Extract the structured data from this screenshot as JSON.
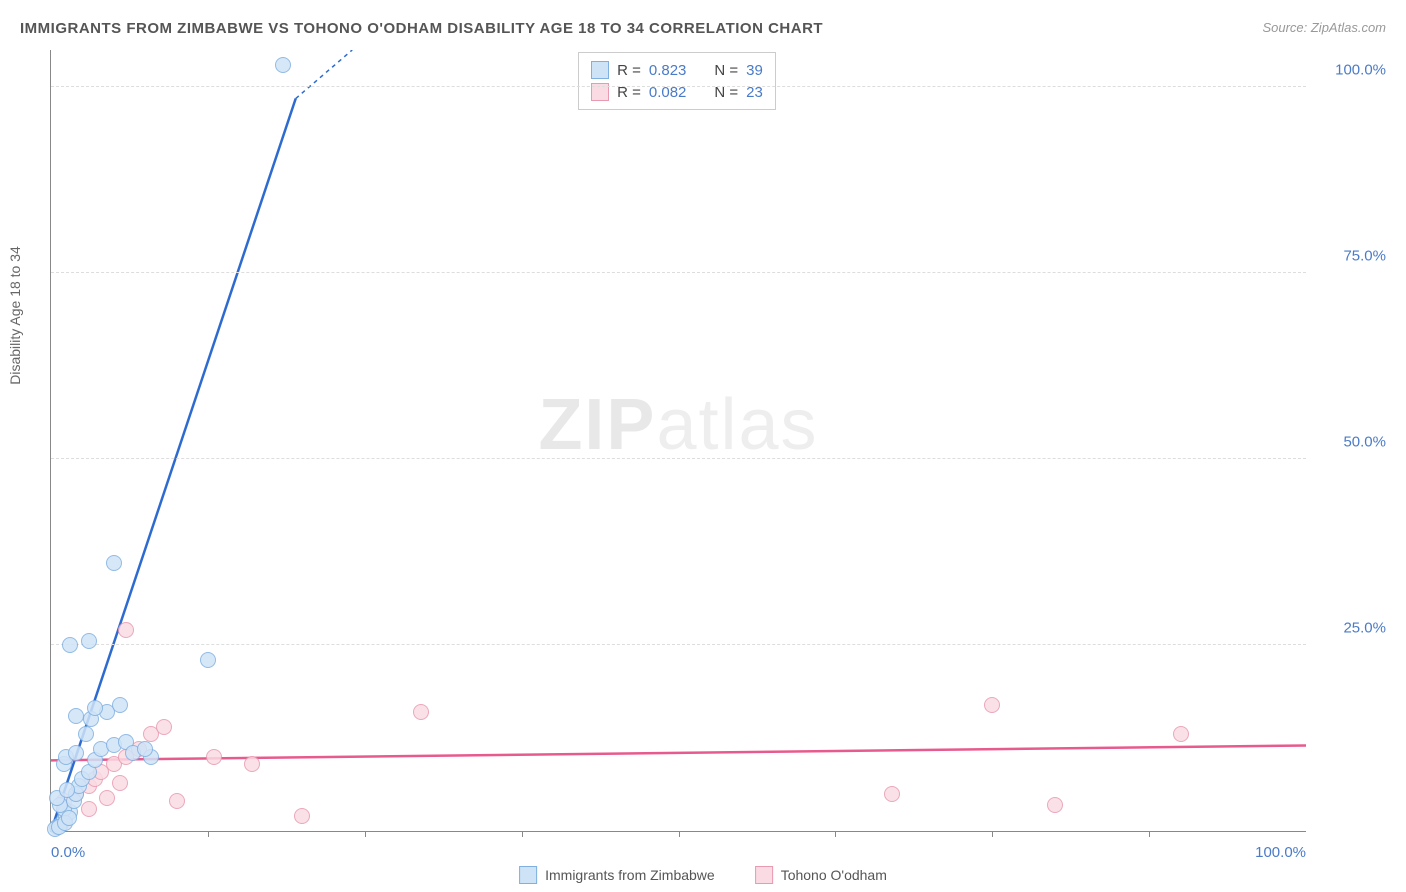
{
  "title": "IMMIGRANTS FROM ZIMBABWE VS TOHONO O'ODHAM DISABILITY AGE 18 TO 34 CORRELATION CHART",
  "source": "Source: ZipAtlas.com",
  "watermark_prefix": "ZIP",
  "watermark_suffix": "atlas",
  "y_axis_label": "Disability Age 18 to 34",
  "chart": {
    "type": "scatter",
    "xlim": [
      0,
      100
    ],
    "ylim": [
      0,
      105
    ],
    "x_ticks": [
      0,
      100
    ],
    "x_tick_labels": [
      "0.0%",
      "100.0%"
    ],
    "x_minor_ticks": [
      12.5,
      25,
      37.5,
      50,
      62.5,
      75,
      87.5
    ],
    "y_ticks": [
      25,
      50,
      75,
      100
    ],
    "y_tick_labels": [
      "25.0%",
      "50.0%",
      "75.0%",
      "100.0%"
    ],
    "background_color": "#ffffff",
    "grid_color": "#dddddd",
    "axis_color": "#888888",
    "tick_label_color": "#4a7bc8",
    "point_radius": 8,
    "point_stroke_width": 1.5,
    "series": [
      {
        "name": "Immigrants from Zimbabwe",
        "fill": "#cfe3f7",
        "stroke": "#7fb0e0",
        "r_value": "0.823",
        "n_value": "39",
        "trend": {
          "slope": 5.05,
          "intercept": 0,
          "color": "#2e6bd0",
          "width": 2.5,
          "clip_x": 19.5,
          "dash_x": 24
        },
        "points": [
          [
            0.5,
            0.5
          ],
          [
            0.8,
            1.0
          ],
          [
            1.0,
            1.5
          ],
          [
            1.2,
            2.0
          ],
          [
            1.5,
            2.5
          ],
          [
            1.0,
            3.0
          ],
          [
            0.7,
            3.5
          ],
          [
            1.8,
            4.0
          ],
          [
            2.0,
            5.0
          ],
          [
            2.2,
            6.0
          ],
          [
            2.5,
            7.0
          ],
          [
            0.5,
            4.5
          ],
          [
            1.3,
            5.5
          ],
          [
            3.0,
            8.0
          ],
          [
            3.5,
            9.5
          ],
          [
            4.0,
            11.0
          ],
          [
            5.0,
            11.5
          ],
          [
            6.0,
            12.0
          ],
          [
            8.0,
            10.0
          ],
          [
            1.0,
            9.0
          ],
          [
            1.2,
            10.0
          ],
          [
            2.0,
            10.5
          ],
          [
            2.8,
            13.0
          ],
          [
            3.2,
            15.0
          ],
          [
            4.5,
            16.0
          ],
          [
            5.5,
            17.0
          ],
          [
            2.0,
            15.5
          ],
          [
            3.5,
            16.5
          ],
          [
            6.5,
            10.5
          ],
          [
            7.5,
            11.0
          ],
          [
            3.0,
            25.5
          ],
          [
            1.5,
            25.0
          ],
          [
            5.0,
            36.0
          ],
          [
            12.5,
            23.0
          ],
          [
            18.5,
            103.0
          ],
          [
            0.3,
            0.3
          ],
          [
            0.6,
            0.6
          ],
          [
            1.1,
            1.1
          ],
          [
            1.4,
            1.8
          ]
        ]
      },
      {
        "name": "Tohono O'odham",
        "fill": "#fadbe3",
        "stroke": "#e89ab0",
        "r_value": "0.082",
        "n_value": "23",
        "trend": {
          "slope": 0.02,
          "intercept": 9.5,
          "color": "#e75a8d",
          "width": 2.5
        },
        "points": [
          [
            1.0,
            4.0
          ],
          [
            2.0,
            5.0
          ],
          [
            3.0,
            6.0
          ],
          [
            3.5,
            7.0
          ],
          [
            4.0,
            8.0
          ],
          [
            5.0,
            9.0
          ],
          [
            6.0,
            10.0
          ],
          [
            7.0,
            11.0
          ],
          [
            8.0,
            13.0
          ],
          [
            9.0,
            14.0
          ],
          [
            10.0,
            4.0
          ],
          [
            6.0,
            27.0
          ],
          [
            13.0,
            10.0
          ],
          [
            16.0,
            9.0
          ],
          [
            20.0,
            2.0
          ],
          [
            29.5,
            16.0
          ],
          [
            67.0,
            5.0
          ],
          [
            75.0,
            17.0
          ],
          [
            80.0,
            3.5
          ],
          [
            90.0,
            13.0
          ],
          [
            3.0,
            3.0
          ],
          [
            4.5,
            4.5
          ],
          [
            5.5,
            6.5
          ]
        ]
      }
    ]
  },
  "legend": {
    "r_label": "R =",
    "n_label": "N ="
  }
}
